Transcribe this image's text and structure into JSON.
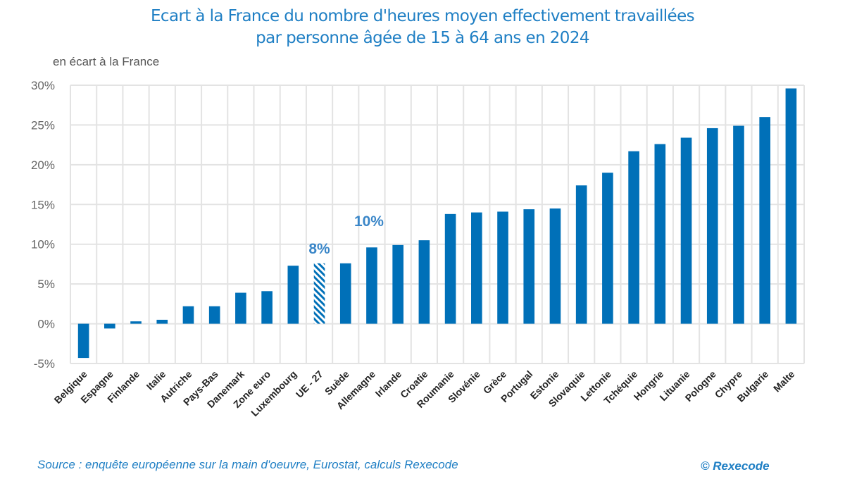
{
  "chart_data": {
    "type": "bar",
    "title": "Ecart à la France du nombre d'heures moyen effectivement travaillées par personne âgée de 15 à 64 ans en 2024",
    "title_lines": [
      "Ecart à la France du nombre d'heures moyen effectivement travaillées",
      "par personne âgée de 15 à 64 ans en 2024"
    ],
    "ylabel": "en écart à la France",
    "xlabel": "",
    "ylim": [
      -5,
      30
    ],
    "yticks": [
      30,
      25,
      20,
      15,
      10,
      5,
      0,
      -5
    ],
    "ytick_labels": [
      "30%",
      "25%",
      "20%",
      "15%",
      "10%",
      "5%",
      "0%",
      "-5%"
    ],
    "grid": true,
    "categories": [
      "Belgique",
      "Espagne",
      "Finlande",
      "Italie",
      "Autriche",
      "Pays-Bas",
      "Danemark",
      "Zone euro",
      "Luxembourg",
      "UE - 27",
      "Suède",
      "Allemagne",
      "Irlande",
      "Croatie",
      "Roumanie",
      "Slovénie",
      "Grèce",
      "Portugal",
      "Estonie",
      "Slovaquie",
      "Lettonie",
      "Tchéquie",
      "Hongrie",
      "Lituanie",
      "Pologne",
      "Chypre",
      "Bulgarie",
      "Malte"
    ],
    "values": [
      -4.3,
      -0.6,
      0.3,
      0.5,
      2.2,
      2.2,
      3.9,
      4.1,
      7.3,
      7.6,
      7.6,
      9.6,
      9.9,
      10.5,
      13.8,
      14.0,
      14.1,
      14.4,
      14.5,
      17.4,
      19.0,
      21.7,
      22.6,
      23.4,
      24.6,
      24.9,
      26.0,
      29.6
    ],
    "highlighted": [
      "UE - 27"
    ],
    "annotations": [
      {
        "category": "UE - 27",
        "text": "8%"
      },
      {
        "category": "Allemagne",
        "text": "10%"
      }
    ],
    "colors": {
      "bar": "#0070b8",
      "hatch_bg": "#ffffff",
      "grid": "#e3e3e3",
      "title": "#1f7fc4"
    }
  },
  "footer": {
    "source": "Source : enquête européenne sur la main d'oeuvre, Eurostat, calculs Rexecode",
    "copyright": "© Rexecode"
  }
}
